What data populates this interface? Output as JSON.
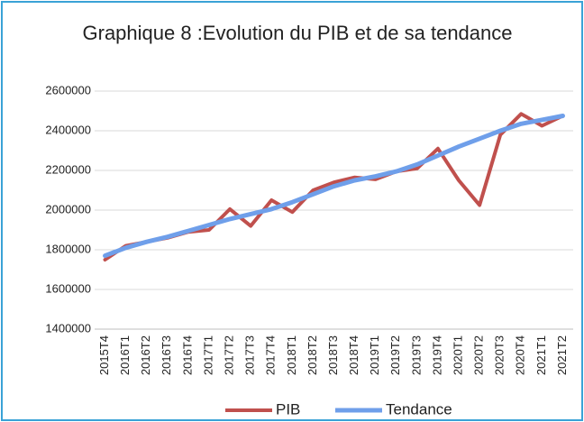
{
  "chart_data": {
    "type": "line",
    "title": "Graphique 8 :Evolution du PIB et de sa tendance",
    "categories": [
      "2015T4",
      "2016T1",
      "2016T2",
      "2016T3",
      "2016T4",
      "2017T1",
      "2017T2",
      "2017T3",
      "2017T4",
      "2018T1",
      "2018T2",
      "2018T3",
      "2018T4",
      "2019T1",
      "2019T2",
      "2019T3",
      "2019T4",
      "2020T1",
      "2020T2",
      "2020T3",
      "2020T4",
      "2021T1",
      "2021T2"
    ],
    "series": [
      {
        "name": "PIB",
        "color": "#c0504d",
        "values": [
          1750000,
          1820000,
          1840000,
          1860000,
          1890000,
          1900000,
          2005000,
          1920000,
          2050000,
          1990000,
          2100000,
          2140000,
          2165000,
          2155000,
          2195000,
          2210000,
          2310000,
          2150000,
          2025000,
          2380000,
          2485000,
          2425000,
          2475000
        ]
      },
      {
        "name": "Tendance",
        "color": "#6f9fea",
        "values": [
          1770000,
          1810000,
          1840000,
          1865000,
          1895000,
          1925000,
          1955000,
          1980000,
          2005000,
          2040000,
          2080000,
          2120000,
          2150000,
          2170000,
          2195000,
          2230000,
          2275000,
          2320000,
          2360000,
          2400000,
          2435000,
          2455000,
          2475000
        ]
      }
    ],
    "ylim": [
      1400000,
      2600000
    ],
    "yticks": [
      1400000,
      1600000,
      1800000,
      2000000,
      2200000,
      2400000,
      2600000
    ],
    "grid": true,
    "legend": "bottom"
  }
}
